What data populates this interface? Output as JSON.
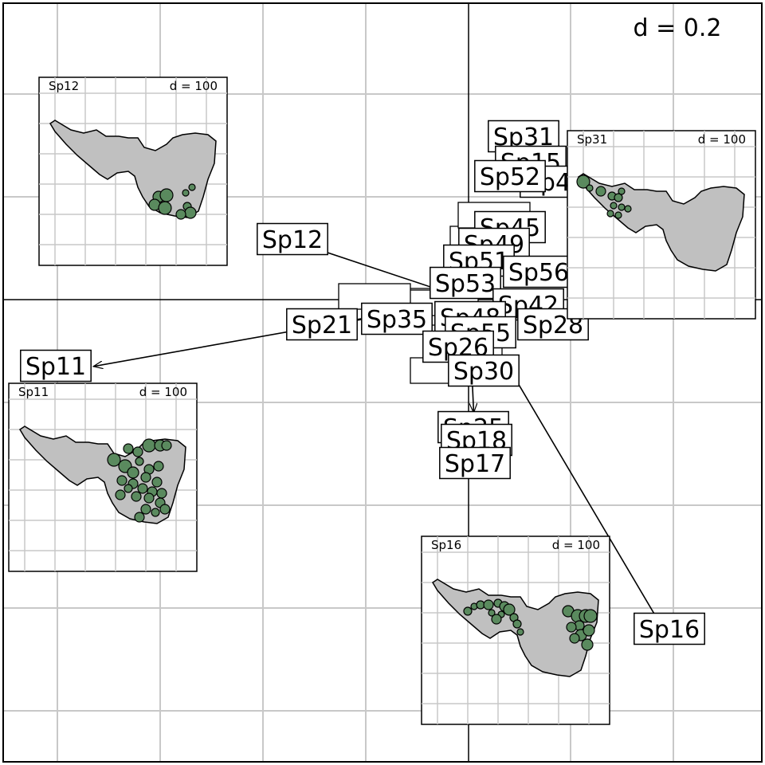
{
  "chart_data": {
    "type": "scatter",
    "grid": true,
    "scale_label": "d = 0.2",
    "inset_scale_label": "d = 100",
    "species_cluster": [
      "Sp31",
      "Sp15",
      "Sp43",
      "Sp52",
      "Sp45",
      "Sp49",
      "Sp51",
      "Sp56",
      "Sp53",
      "Sp42",
      "Sp28",
      "Sp35",
      "Sp48",
      "Sp55",
      "Sp26",
      "Sp30",
      "Sp25",
      "Sp18",
      "Sp17"
    ],
    "arrows": [
      {
        "label": "Sp12",
        "to": [
          -0.36,
          0.12
        ]
      },
      {
        "label": "Sp11",
        "to": [
          -0.73,
          -0.13
        ]
      },
      {
        "label": "Sp21",
        "to": [
          -0.27,
          -0.05
        ]
      },
      {
        "label": "Sp16",
        "to": [
          0.39,
          -0.66
        ]
      },
      {
        "label": "Sp25",
        "to": [
          0.01,
          -0.22
        ]
      }
    ],
    "insets": [
      {
        "label": "Sp12"
      },
      {
        "label": "Sp31"
      },
      {
        "label": "Sp11"
      },
      {
        "label": "Sp16"
      }
    ],
    "colors": {
      "point_fill": "#5a8a5e",
      "map_fill": "#c0c0c0",
      "grid": "#c8c8c8"
    }
  }
}
